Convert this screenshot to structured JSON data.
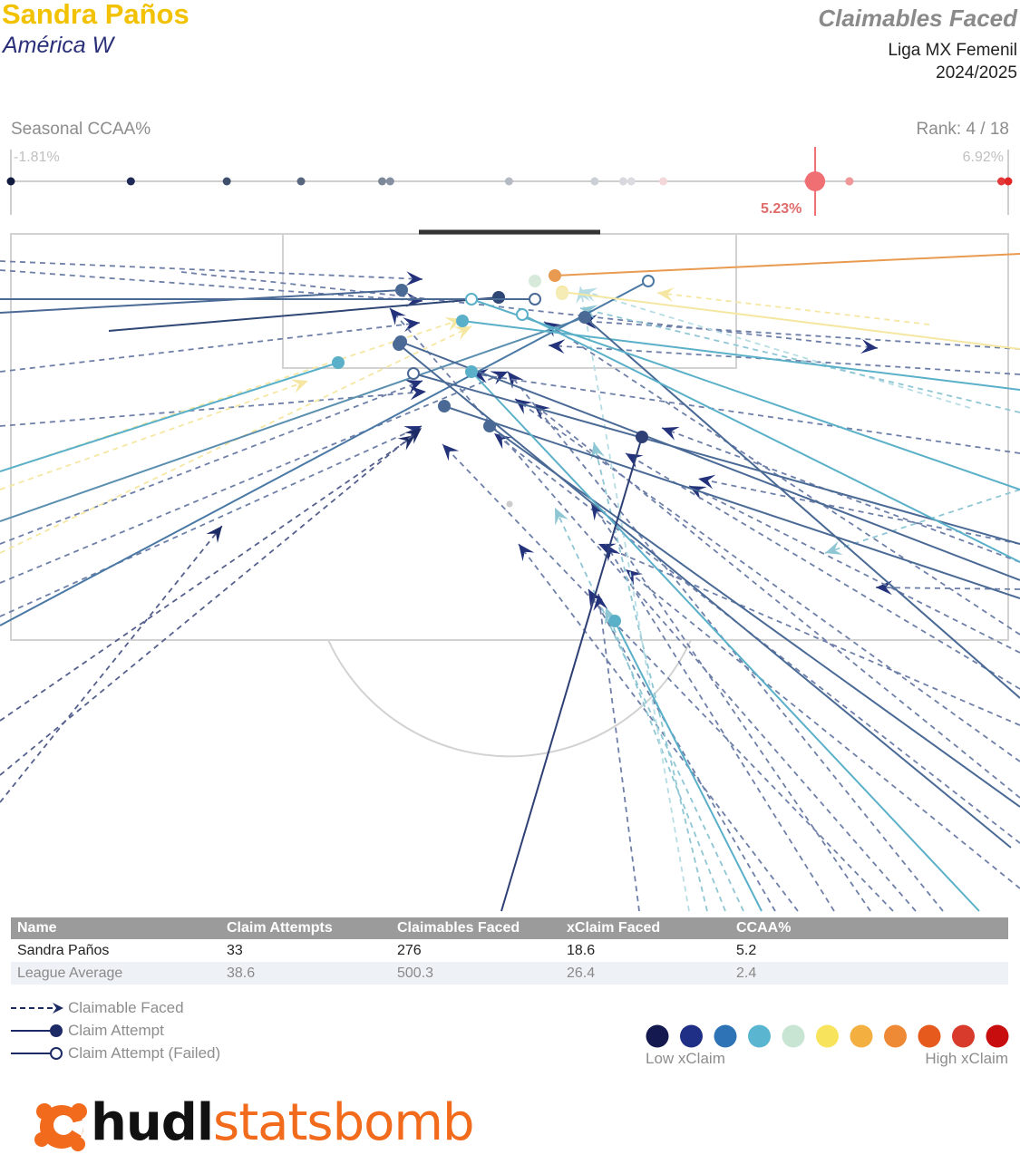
{
  "header": {
    "player": "Sandra Paños",
    "team": "América W",
    "title": "Claimables Faced",
    "league": "Liga MX Femenil",
    "season": "2024/2025"
  },
  "scale": {
    "label": "Seasonal CCAA%",
    "rank": "Rank: 4 / 18",
    "min_label": "-1.81%",
    "max_label": "6.92%",
    "min": -1.81,
    "max": 6.92,
    "player_label": "5.23%",
    "player_value": 5.23,
    "others": [
      -1.81,
      -0.76,
      0.08,
      0.73,
      1.44,
      1.51,
      2.55,
      3.3,
      3.55,
      3.62,
      3.9,
      5.17,
      5.53,
      5.53,
      6.86,
      6.92
    ],
    "colors": [
      "#111a3f",
      "#1e2a55",
      "#3e4e6d",
      "#57657f",
      "#7c8798",
      "#858fa0",
      "#b6bac4",
      "#ccd0d6",
      "#d8d8de",
      "#dadcdf",
      "#f3d7d9",
      "#f0a7aa",
      "#ee9a9c",
      "#ef9799",
      "#e33b3b",
      "#e02828"
    ],
    "player_color": "#ef6f73"
  },
  "chart_data": {
    "type": "scatter",
    "title": "Claimables Faced",
    "claimables_dashed": [
      [
        0,
        288,
        466,
        308,
        "#6e7fa8"
      ],
      [
        0,
        298,
        466,
        332,
        "#6e7fa8"
      ],
      [
        200,
        300,
        968,
        384,
        "#6e7fa8"
      ],
      [
        1125,
        385,
        640,
        354,
        "#6e7fa8"
      ],
      [
        1125,
        413,
        605,
        381,
        "#6e7fa8"
      ],
      [
        0,
        410,
        463,
        356,
        "#6e7fa8"
      ],
      [
        0,
        470,
        470,
        432,
        "#6e7fa8"
      ],
      [
        0,
        600,
        466,
        420,
        "#6e7fa8"
      ],
      [
        0,
        643,
        560,
        410,
        "#6e7fa8"
      ],
      [
        0,
        680,
        465,
        470,
        "#6e7fa8"
      ],
      [
        0,
        795,
        458,
        480,
        "#55608d"
      ],
      [
        0,
        855,
        465,
        472,
        "#55608d"
      ],
      [
        0,
        885,
        245,
        580,
        "#55608d"
      ],
      [
        1125,
        700,
        600,
        355,
        "#6e7fa8"
      ],
      [
        1125,
        600,
        770,
        528,
        "#6e7fa8"
      ],
      [
        1125,
        620,
        730,
        472,
        "#6e7fa8"
      ],
      [
        1125,
        650,
        966,
        648,
        "#6e7fa8"
      ],
      [
        1125,
        720,
        760,
        536,
        "#6e7fa8"
      ],
      [
        1125,
        760,
        690,
        500,
        "#6e7fa8"
      ],
      [
        1125,
        800,
        660,
        600,
        "#6e7fa8"
      ],
      [
        1125,
        840,
        568,
        440,
        "#6e7fa8"
      ],
      [
        1125,
        880,
        588,
        445,
        "#6e7fa8"
      ],
      [
        1125,
        930,
        545,
        478,
        "#6e7fa8"
      ],
      [
        1125,
        980,
        690,
        628,
        "#6e7fa8"
      ],
      [
        1040,
        1005,
        560,
        410,
        "#6e7fa8"
      ],
      [
        1010,
        1005,
        430,
        340,
        "#6e7fa8"
      ],
      [
        985,
        1005,
        488,
        490,
        "#6e7fa8"
      ],
      [
        960,
        1005,
        652,
        555,
        "#6e7fa8"
      ],
      [
        920,
        1005,
        668,
        600,
        "#6e7fa8"
      ],
      [
        880,
        1005,
        572,
        600,
        "#6e7fa8"
      ],
      [
        855,
        1005,
        649,
        650,
        "#6e7fa8"
      ],
      [
        820,
        1005,
        612,
        560,
        "#8fc6d4"
      ],
      [
        800,
        1005,
        668,
        670,
        "#8fc6d4"
      ],
      [
        780,
        1005,
        655,
        488,
        "#8fc6d4"
      ],
      [
        760,
        1005,
        640,
        316,
        "#b7dde4"
      ],
      [
        705,
        1005,
        660,
        655,
        "#6e7fa8"
      ],
      [
        1070,
        450,
        640,
        320,
        "#b7dde4"
      ],
      [
        1025,
        358,
        725,
        323,
        "#f5e7a2"
      ],
      [
        1125,
        455,
        640,
        340,
        "#8fc6d4"
      ],
      [
        0,
        540,
        340,
        420,
        "#f5e7a2"
      ],
      [
        0,
        520,
        510,
        352,
        "#f5e7a2"
      ],
      [
        0,
        610,
        520,
        360,
        "#f5e7a2"
      ],
      [
        1125,
        540,
        910,
        610,
        "#8fc6d4"
      ],
      [
        1125,
        500,
        520,
        412,
        "#6e7fa8"
      ]
    ],
    "attempts_solid": [
      [
        0,
        345,
        443,
        320,
        "#4a6a95",
        "f"
      ],
      [
        120,
        365,
        550,
        328,
        "#2e4775",
        "f"
      ],
      [
        0,
        330,
        590,
        330,
        "#4a6a95",
        "o"
      ],
      [
        0,
        520,
        373,
        400,
        "#5ab0c8",
        "f"
      ],
      [
        0,
        575,
        645,
        350,
        "#5a8fb0",
        "f"
      ],
      [
        0,
        690,
        715,
        310,
        "#4a78a5",
        "o"
      ],
      [
        1125,
        280,
        612,
        304,
        "#e89a50",
        "f"
      ],
      [
        1125,
        385,
        620,
        322,
        "#f5e7a2",
        "f"
      ],
      [
        1125,
        430,
        510,
        354,
        "#5ab0c8",
        "f"
      ],
      [
        1125,
        660,
        490,
        448,
        "#4a6a95",
        "f"
      ],
      [
        1125,
        640,
        442,
        377,
        "#4a6a95",
        "f"
      ],
      [
        1125,
        890,
        540,
        470,
        "#4a6a95",
        "f"
      ],
      [
        1115,
        935,
        440,
        380,
        "#4a6a95",
        "f"
      ],
      [
        1080,
        1005,
        520,
        410,
        "#5ab0c8",
        "f"
      ],
      [
        1125,
        770,
        645,
        350,
        "#4a6a95",
        "f"
      ],
      [
        1125,
        600,
        456,
        412,
        "#4a6a95",
        "o"
      ],
      [
        840,
        1005,
        678,
        685,
        "#5ab0c8",
        "f"
      ],
      [
        553,
        1005,
        708,
        482,
        "#2e3f75",
        "f"
      ],
      [
        1125,
        540,
        520,
        330,
        "#5ab0c8",
        "o"
      ],
      [
        1125,
        620,
        576,
        347,
        "#5ab0c8",
        "o"
      ]
    ],
    "endpoints": [
      [
        590,
        310,
        "#d7ead9"
      ],
      [
        620,
        324,
        "#f5ecb5"
      ],
      [
        562,
        556,
        "#cccccc"
      ]
    ],
    "legend": {
      "dashed": "Claimable Faced",
      "attempt": "Claim Attempt",
      "failed": "Claim Attempt (Failed)"
    },
    "gradient": {
      "colors": [
        "#141a4f",
        "#1f2f86",
        "#2e73b5",
        "#5ab6d0",
        "#c8e4d3",
        "#f8e45c",
        "#f3b040",
        "#ee8a35",
        "#e65a1e",
        "#d83a2c",
        "#c70d0d"
      ],
      "low": "Low xClaim",
      "high": "High xClaim"
    }
  },
  "table": {
    "headers": [
      "Name",
      "Claim Attempts",
      "Claimables Faced",
      "xClaim Faced",
      "CCAA%"
    ],
    "rows": [
      [
        "Sandra Paños",
        "33",
        "276",
        "18.6",
        "5.2"
      ],
      [
        "League Average",
        "38.6",
        "500.3",
        "26.4",
        "2.4"
      ]
    ]
  },
  "logo": {
    "part1": "hudl",
    "part2": "statsbomb"
  }
}
